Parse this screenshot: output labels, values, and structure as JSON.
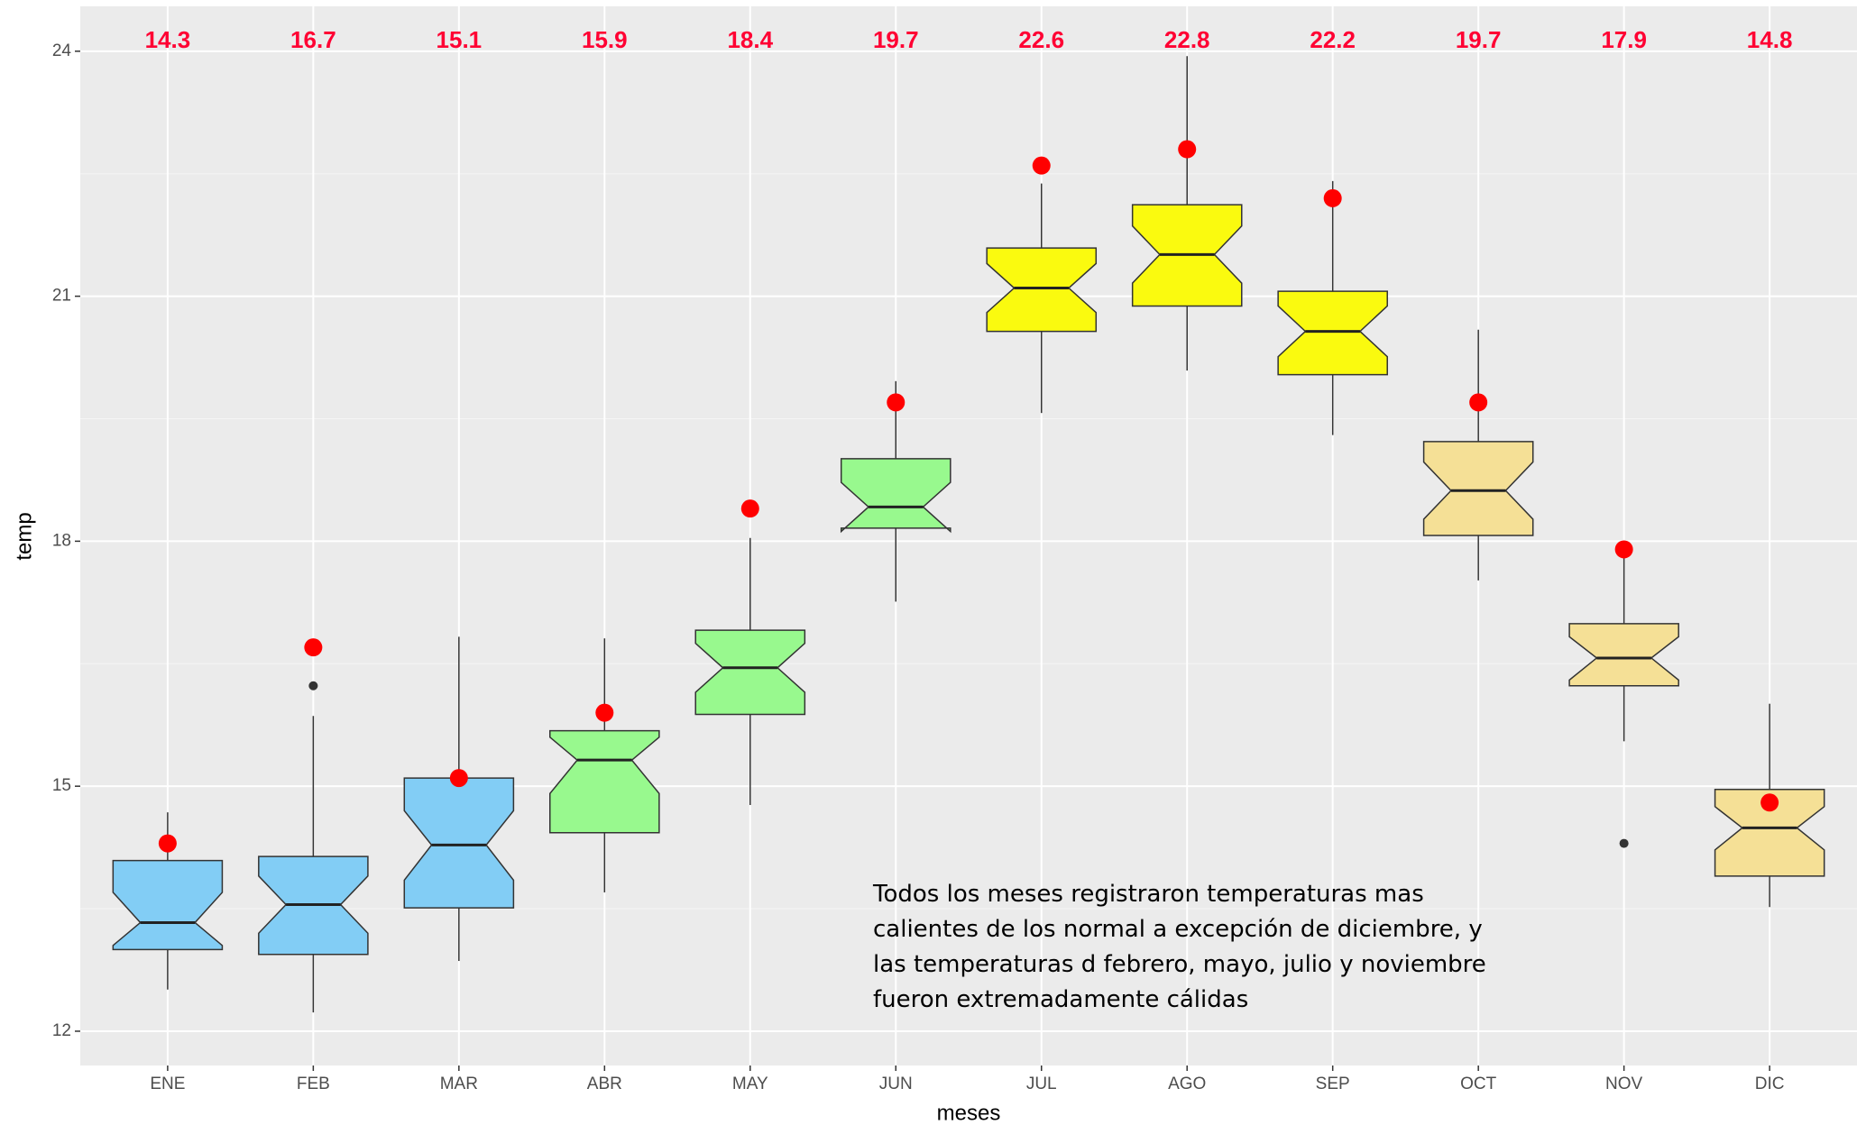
{
  "chart_data": {
    "type": "boxplot",
    "x_label": "meses",
    "y_label": "temp",
    "categories": [
      "ENE",
      "FEB",
      "MAR",
      "ABR",
      "MAY",
      "JUN",
      "JUL",
      "AGO",
      "SEP",
      "OCT",
      "NOV",
      "DIC"
    ],
    "ylim": [
      11.58,
      24.55
    ],
    "yticks": [
      12,
      15,
      18,
      21,
      24
    ],
    "grid": true,
    "boxes": [
      {
        "whisker_low": 12.51,
        "q1": 13.0,
        "notch_low": 13.05,
        "median": 13.33,
        "notch_high": 13.7,
        "q3": 14.09,
        "whisker_high": 14.68,
        "outliers": [],
        "color": "#82cdf5"
      },
      {
        "whisker_low": 12.23,
        "q1": 12.94,
        "notch_low": 13.2,
        "median": 13.55,
        "notch_high": 13.9,
        "q3": 14.14,
        "whisker_high": 15.86,
        "outliers": [
          16.23
        ],
        "color": "#82cdf5"
      },
      {
        "whisker_low": 12.86,
        "q1": 13.51,
        "notch_low": 13.85,
        "median": 14.28,
        "notch_high": 14.7,
        "q3": 15.1,
        "whisker_high": 16.83,
        "outliers": [],
        "color": "#82cdf5"
      },
      {
        "whisker_low": 13.7,
        "q1": 14.43,
        "notch_low": 14.91,
        "median": 15.32,
        "notch_high": 15.6,
        "q3": 15.68,
        "whisker_high": 16.81,
        "outliers": [],
        "color": "#98f98e"
      },
      {
        "whisker_low": 14.77,
        "q1": 15.88,
        "notch_low": 16.15,
        "median": 16.45,
        "notch_high": 16.75,
        "q3": 16.91,
        "whisker_high": 18.04,
        "outliers": [],
        "color": "#98f98e"
      },
      {
        "whisker_low": 17.26,
        "q1": 18.16,
        "notch_low": 18.12,
        "median": 18.42,
        "notch_high": 18.72,
        "q3": 19.01,
        "whisker_high": 19.96,
        "outliers": [],
        "color": "#98f98e"
      },
      {
        "whisker_low": 19.57,
        "q1": 20.57,
        "notch_low": 20.8,
        "median": 21.1,
        "notch_high": 21.4,
        "q3": 21.59,
        "whisker_high": 22.38,
        "outliers": [],
        "color": "#fafa0f"
      },
      {
        "whisker_low": 20.09,
        "q1": 20.88,
        "notch_low": 21.16,
        "median": 21.51,
        "notch_high": 21.86,
        "q3": 22.12,
        "whisker_high": 23.94,
        "outliers": [],
        "color": "#fafa0f"
      },
      {
        "whisker_low": 19.3,
        "q1": 20.04,
        "notch_low": 20.26,
        "median": 20.57,
        "notch_high": 20.88,
        "q3": 21.06,
        "whisker_high": 22.41,
        "outliers": [],
        "color": "#fafa0f"
      },
      {
        "whisker_low": 17.52,
        "q1": 18.07,
        "notch_low": 18.27,
        "median": 18.62,
        "notch_high": 18.97,
        "q3": 19.22,
        "whisker_high": 20.59,
        "outliers": [],
        "color": "#f5e096"
      },
      {
        "whisker_low": 15.55,
        "q1": 16.23,
        "notch_low": 16.3,
        "median": 16.57,
        "notch_high": 16.83,
        "q3": 16.99,
        "whisker_high": 17.8,
        "outliers": [
          14.3
        ],
        "color": "#f5e096"
      },
      {
        "whisker_low": 13.52,
        "q1": 13.9,
        "notch_low": 14.22,
        "median": 14.49,
        "notch_high": 14.75,
        "q3": 14.96,
        "whisker_high": 16.01,
        "outliers": [],
        "color": "#f5e096"
      }
    ],
    "points": {
      "values": [
        14.3,
        16.7,
        15.1,
        15.9,
        18.4,
        19.7,
        22.6,
        22.8,
        22.2,
        19.7,
        17.9,
        14.8
      ],
      "color": "#ff0000",
      "label_color": "#ff0033"
    },
    "annotation": [
      "Todos los meses registraron temperaturas mas",
      "calientes de los normal a excepción de diciembre, y",
      "las temperaturas d febrero, mayo, julio y noviembre",
      "fueron extremadamente cálidas"
    ]
  }
}
